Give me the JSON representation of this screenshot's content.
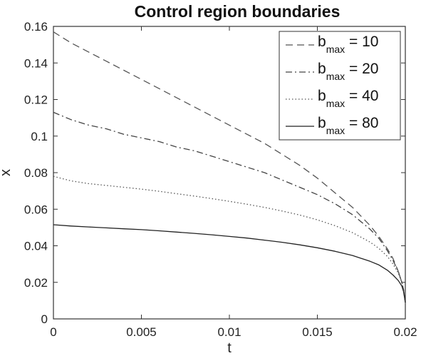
{
  "chart_data": {
    "type": "line",
    "title": "Control region boundaries",
    "xlabel": "t",
    "ylabel": "x",
    "xlim": [
      0,
      0.02
    ],
    "ylim": [
      0,
      0.16
    ],
    "xticks": [
      "0",
      "0.005",
      "0.01",
      "0.015",
      "0.02"
    ],
    "yticks": [
      "0",
      "0.02",
      "0.04",
      "0.06",
      "0.08",
      "0.1",
      "0.12",
      "0.14",
      "0.16"
    ],
    "grid": false,
    "legend_position": "top-right",
    "series": [
      {
        "name": "b_max = 10",
        "label_main": "b",
        "label_sub": "max",
        "label_value": " = 10",
        "style": "dashed",
        "color": "#555555",
        "x": [
          0,
          0.001,
          0.002,
          0.003,
          0.004,
          0.005,
          0.006,
          0.007,
          0.008,
          0.009,
          0.01,
          0.011,
          0.012,
          0.013,
          0.014,
          0.015,
          0.016,
          0.017,
          0.018,
          0.0185,
          0.019,
          0.0193,
          0.0196,
          0.0198,
          0.0199,
          0.02
        ],
        "y": [
          0.157,
          0.151,
          0.146,
          0.141,
          0.136,
          0.131,
          0.126,
          0.121,
          0.116,
          0.111,
          0.106,
          0.101,
          0.096,
          0.09,
          0.084,
          0.077,
          0.069,
          0.061,
          0.051,
          0.045,
          0.038,
          0.033,
          0.026,
          0.02,
          0.016,
          0.009
        ]
      },
      {
        "name": "b_max = 20",
        "label_main": "b",
        "label_sub": "max",
        "label_value": " = 20",
        "style": "dashdot",
        "color": "#444444",
        "x": [
          0,
          0.001,
          0.002,
          0.003,
          0.004,
          0.005,
          0.006,
          0.007,
          0.008,
          0.009,
          0.01,
          0.011,
          0.012,
          0.013,
          0.014,
          0.015,
          0.016,
          0.017,
          0.018,
          0.0185,
          0.019,
          0.0193,
          0.0196,
          0.0198,
          0.0199,
          0.02
        ],
        "y": [
          0.113,
          0.109,
          0.106,
          0.104,
          0.101,
          0.099,
          0.097,
          0.094,
          0.092,
          0.089,
          0.086,
          0.083,
          0.08,
          0.076,
          0.072,
          0.068,
          0.063,
          0.057,
          0.049,
          0.044,
          0.037,
          0.032,
          0.026,
          0.02,
          0.016,
          0.009
        ]
      },
      {
        "name": "b_max = 40",
        "label_main": "b",
        "label_sub": "max",
        "label_value": " = 40",
        "style": "dotted",
        "color": "#555555",
        "x": [
          0,
          0.001,
          0.002,
          0.003,
          0.004,
          0.005,
          0.006,
          0.007,
          0.008,
          0.009,
          0.01,
          0.011,
          0.012,
          0.013,
          0.014,
          0.015,
          0.016,
          0.017,
          0.018,
          0.0185,
          0.019,
          0.0193,
          0.0196,
          0.0198,
          0.0199,
          0.02
        ],
        "y": [
          0.078,
          0.0755,
          0.074,
          0.073,
          0.072,
          0.071,
          0.0698,
          0.0685,
          0.0672,
          0.0658,
          0.0643,
          0.0627,
          0.061,
          0.059,
          0.0568,
          0.0542,
          0.051,
          0.0472,
          0.042,
          0.0385,
          0.034,
          0.03,
          0.025,
          0.02,
          0.016,
          0.009
        ]
      },
      {
        "name": "b_max = 80",
        "label_main": "b",
        "label_sub": "max",
        "label_value": " = 80",
        "style": "solid",
        "color": "#222222",
        "x": [
          0,
          0.001,
          0.002,
          0.003,
          0.004,
          0.005,
          0.006,
          0.007,
          0.008,
          0.009,
          0.01,
          0.011,
          0.012,
          0.013,
          0.014,
          0.015,
          0.016,
          0.017,
          0.018,
          0.0185,
          0.019,
          0.0193,
          0.0196,
          0.0198,
          0.0199,
          0.02
        ],
        "y": [
          0.0515,
          0.0508,
          0.0503,
          0.0498,
          0.0493,
          0.0488,
          0.0482,
          0.0475,
          0.0468,
          0.046,
          0.0451,
          0.0442,
          0.0431,
          0.0419,
          0.0405,
          0.0389,
          0.037,
          0.0347,
          0.0315,
          0.0295,
          0.0265,
          0.024,
          0.021,
          0.018,
          0.015,
          0.009
        ]
      }
    ]
  }
}
